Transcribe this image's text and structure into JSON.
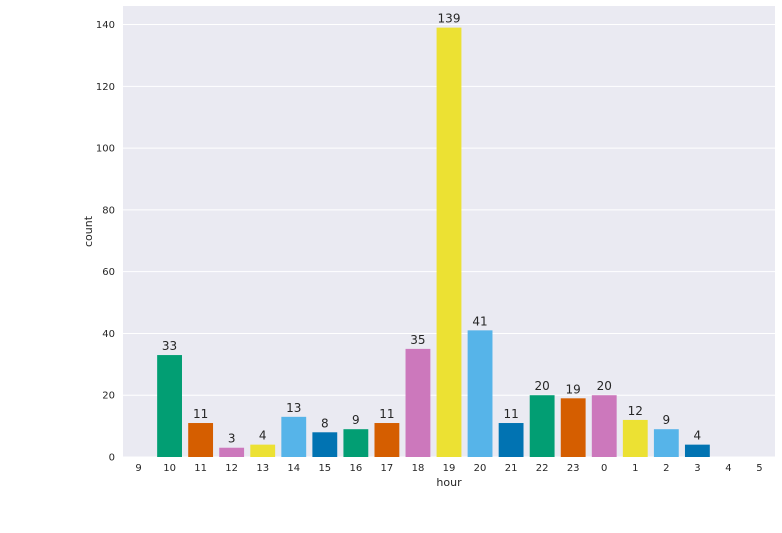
{
  "chart_data": {
    "type": "bar",
    "xlabel": "hour",
    "ylabel": "count",
    "ylim": [
      0,
      146
    ],
    "yticks": [
      0,
      20,
      40,
      60,
      80,
      100,
      120,
      140
    ],
    "grid": true,
    "categories": [
      "9",
      "10",
      "11",
      "12",
      "13",
      "14",
      "15",
      "16",
      "17",
      "18",
      "19",
      "20",
      "21",
      "22",
      "23",
      "0",
      "1",
      "2",
      "3",
      "4",
      "5"
    ],
    "values": [
      0,
      33,
      11,
      3,
      4,
      13,
      8,
      9,
      11,
      35,
      139,
      41,
      11,
      20,
      19,
      20,
      12,
      9,
      4,
      0,
      0
    ],
    "data_labels": [
      "",
      "33",
      "11",
      "3",
      "4",
      "13",
      "8",
      "9",
      "11",
      "35",
      "139",
      "41",
      "11",
      "20",
      "19",
      "20",
      "12",
      "9",
      "4",
      "",
      ""
    ],
    "palette": [
      "#0173b2",
      "#029e73",
      "#d55e00",
      "#cc78bc",
      "#ece133",
      "#56b4e9"
    ],
    "background": "#eaeaf2",
    "grid_color": "#ffffff"
  }
}
